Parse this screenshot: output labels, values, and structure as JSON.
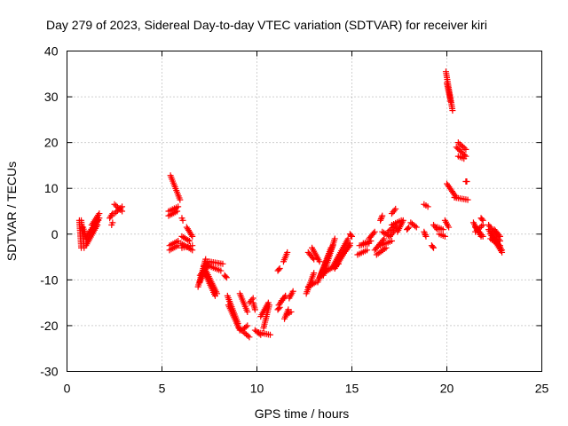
{
  "chart_data": {
    "type": "scatter",
    "title": "Day 279 of 2023, Sidereal Day-to-day VTEC variation (SDTVAR) for receiver kiri",
    "xlabel": "GPS time / hours",
    "ylabel": "SDTVAR / TECUs",
    "xlim": [
      0,
      25
    ],
    "ylim": [
      -30,
      40
    ],
    "xticks": [
      "0",
      "5",
      "10",
      "15",
      "20",
      "25"
    ],
    "yticks": [
      "-30",
      "-20",
      "-10",
      "0",
      "10",
      "20",
      "30",
      "40"
    ],
    "grid": true,
    "marker": "+",
    "color": "#ff0000",
    "segments": [
      {
        "from": [
          0.65,
          3.0
        ],
        "to": [
          0.75,
          -3.0
        ]
      },
      {
        "from": [
          0.75,
          3.0
        ],
        "to": [
          0.9,
          -3.0
        ]
      },
      {
        "from": [
          0.85,
          1.5
        ],
        "to": [
          1.0,
          -1.0
        ]
      },
      {
        "from": [
          1.0,
          -2.5
        ],
        "to": [
          1.6,
          2.0
        ]
      },
      {
        "from": [
          1.05,
          -1.0
        ],
        "to": [
          1.65,
          3.0
        ]
      },
      {
        "from": [
          1.1,
          0.0
        ],
        "to": [
          1.7,
          3.5
        ]
      },
      {
        "from": [
          1.3,
          2.0
        ],
        "to": [
          1.7,
          4.5
        ]
      },
      {
        "from": [
          2.25,
          3.5
        ],
        "to": [
          2.4,
          4.5
        ]
      },
      {
        "from": [
          2.35,
          2.0
        ],
        "to": [
          2.4,
          2.5
        ]
      },
      {
        "from": [
          2.5,
          6.5
        ],
        "to": [
          2.9,
          5.0
        ]
      },
      {
        "from": [
          2.5,
          4.5
        ],
        "to": [
          2.9,
          6.0
        ]
      },
      {
        "from": [
          5.45,
          12.8
        ],
        "to": [
          5.95,
          7.5
        ]
      },
      {
        "from": [
          5.35,
          5.0
        ],
        "to": [
          5.85,
          6.0
        ]
      },
      {
        "from": [
          5.35,
          4.0
        ],
        "to": [
          5.8,
          5.0
        ]
      },
      {
        "from": [
          5.4,
          -2.5
        ],
        "to": [
          5.85,
          -1.5
        ]
      },
      {
        "from": [
          5.4,
          -3.5
        ],
        "to": [
          5.85,
          -2.5
        ]
      },
      {
        "from": [
          6.0,
          -2.0
        ],
        "to": [
          6.6,
          -3.5
        ]
      },
      {
        "from": [
          6.05,
          -3.0
        ],
        "to": [
          6.6,
          -2.5
        ]
      },
      {
        "from": [
          6.05,
          -0.5
        ],
        "to": [
          6.45,
          -1.5
        ]
      },
      {
        "from": [
          6.3,
          1.5
        ],
        "to": [
          6.6,
          -0.5
        ]
      },
      {
        "from": [
          6.05,
          3.5
        ],
        "to": [
          6.1,
          3.0
        ]
      },
      {
        "from": [
          6.9,
          -11.5
        ],
        "to": [
          7.3,
          -5.5
        ]
      },
      {
        "from": [
          7.0,
          -10.5
        ],
        "to": [
          7.4,
          -6.0
        ]
      },
      {
        "from": [
          7.0,
          -9.0
        ],
        "to": [
          7.5,
          -6.5
        ]
      },
      {
        "from": [
          7.2,
          -7.0
        ],
        "to": [
          7.9,
          -13.0
        ]
      },
      {
        "from": [
          7.2,
          -8.0
        ],
        "to": [
          7.8,
          -13.5
        ]
      },
      {
        "from": [
          7.5,
          -6.0
        ],
        "to": [
          8.2,
          -6.5
        ]
      },
      {
        "from": [
          7.5,
          -7.0
        ],
        "to": [
          8.1,
          -8.0
        ]
      },
      {
        "from": [
          8.3,
          -9.0
        ],
        "to": [
          8.4,
          -9.5
        ]
      },
      {
        "from": [
          8.45,
          -13.5
        ],
        "to": [
          9.0,
          -19.5
        ]
      },
      {
        "from": [
          8.5,
          -15.5
        ],
        "to": [
          9.1,
          -21.0
        ]
      },
      {
        "from": [
          9.05,
          -20.5
        ],
        "to": [
          9.6,
          -22.5
        ]
      },
      {
        "from": [
          9.2,
          -21.0
        ],
        "to": [
          9.5,
          -20.0
        ]
      },
      {
        "from": [
          9.1,
          -13.0
        ],
        "to": [
          9.5,
          -17.0
        ]
      },
      {
        "from": [
          9.6,
          -15.0
        ],
        "to": [
          9.8,
          -14.0
        ]
      },
      {
        "from": [
          9.8,
          -15.0
        ],
        "to": [
          9.9,
          -16.5
        ]
      },
      {
        "from": [
          10.1,
          -21.5
        ],
        "to": [
          10.7,
          -22.0
        ]
      },
      {
        "from": [
          9.9,
          -21.0
        ],
        "to": [
          10.2,
          -22.0
        ]
      },
      {
        "from": [
          10.2,
          -18.0
        ],
        "to": [
          10.6,
          -15.0
        ]
      },
      {
        "from": [
          10.35,
          -20.5
        ],
        "to": [
          10.65,
          -15.5
        ]
      },
      {
        "from": [
          11.1,
          -16.5
        ],
        "to": [
          11.2,
          -16.0
        ]
      },
      {
        "from": [
          11.1,
          -8.0
        ],
        "to": [
          11.2,
          -7.5
        ]
      },
      {
        "from": [
          11.15,
          -15.5
        ],
        "to": [
          11.5,
          -13.5
        ]
      },
      {
        "from": [
          11.3,
          -14.5
        ],
        "to": [
          11.5,
          -13.5
        ]
      },
      {
        "from": [
          11.4,
          -6.0
        ],
        "to": [
          11.6,
          -4.0
        ]
      },
      {
        "from": [
          11.45,
          -18.5
        ],
        "to": [
          11.65,
          -16.5
        ]
      },
      {
        "from": [
          11.6,
          -17.5
        ],
        "to": [
          11.8,
          -17.0
        ]
      },
      {
        "from": [
          11.7,
          -14.0
        ],
        "to": [
          11.9,
          -12.5
        ]
      },
      {
        "from": [
          12.6,
          -13.0
        ],
        "to": [
          13.0,
          -8.5
        ]
      },
      {
        "from": [
          12.7,
          -11.5
        ],
        "to": [
          13.1,
          -10.5
        ]
      },
      {
        "from": [
          12.7,
          -4.0
        ],
        "to": [
          13.0,
          -5.5
        ]
      },
      {
        "from": [
          12.9,
          -3.0
        ],
        "to": [
          13.3,
          -6.0
        ]
      },
      {
        "from": [
          13.2,
          -10.5
        ],
        "to": [
          14.0,
          -2.5
        ]
      },
      {
        "from": [
          13.3,
          -9.5
        ],
        "to": [
          13.9,
          -3.0
        ]
      },
      {
        "from": [
          13.5,
          -9.0
        ],
        "to": [
          14.1,
          -1.0
        ]
      },
      {
        "from": [
          13.5,
          -8.5
        ],
        "to": [
          14.3,
          -6.5
        ]
      },
      {
        "from": [
          14.0,
          -7.0
        ],
        "to": [
          14.8,
          -1.0
        ]
      },
      {
        "from": [
          14.1,
          -7.5
        ],
        "to": [
          14.9,
          -2.0
        ]
      },
      {
        "from": [
          14.2,
          -6.0
        ],
        "to": [
          14.9,
          -2.5
        ]
      },
      {
        "from": [
          14.9,
          0.0
        ],
        "to": [
          15.0,
          -0.5
        ]
      },
      {
        "from": [
          15.3,
          -4.5
        ],
        "to": [
          15.8,
          -3.5
        ]
      },
      {
        "from": [
          15.4,
          -2.5
        ],
        "to": [
          15.9,
          -2.0
        ]
      },
      {
        "from": [
          15.6,
          -2.0
        ],
        "to": [
          16.0,
          -1.5
        ]
      },
      {
        "from": [
          15.9,
          -1.0
        ],
        "to": [
          16.2,
          0.5
        ]
      },
      {
        "from": [
          16.2,
          -3.5
        ],
        "to": [
          16.7,
          -1.0
        ]
      },
      {
        "from": [
          16.3,
          -4.5
        ],
        "to": [
          16.8,
          -3.0
        ]
      },
      {
        "from": [
          16.5,
          -2.5
        ],
        "to": [
          17.1,
          -1.5
        ]
      },
      {
        "from": [
          16.6,
          0.5
        ],
        "to": [
          17.0,
          -0.5
        ]
      },
      {
        "from": [
          16.9,
          0.5
        ],
        "to": [
          17.3,
          2.0
        ]
      },
      {
        "from": [
          17.0,
          -0.5
        ],
        "to": [
          17.4,
          1.5
        ]
      },
      {
        "from": [
          17.1,
          2.0
        ],
        "to": [
          17.6,
          3.0
        ]
      },
      {
        "from": [
          17.4,
          0.5
        ],
        "to": [
          17.7,
          3.0
        ]
      },
      {
        "from": [
          16.5,
          3.0
        ],
        "to": [
          16.6,
          4.0
        ]
      },
      {
        "from": [
          17.1,
          4.5
        ],
        "to": [
          17.3,
          5.5
        ]
      },
      {
        "from": [
          17.9,
          1.0
        ],
        "to": [
          18.0,
          1.5
        ]
      },
      {
        "from": [
          18.1,
          2.5
        ],
        "to": [
          18.4,
          1.5
        ]
      },
      {
        "from": [
          18.8,
          6.5
        ],
        "to": [
          19.0,
          6.0
        ]
      },
      {
        "from": [
          18.8,
          0.5
        ],
        "to": [
          18.9,
          -0.5
        ]
      },
      {
        "from": [
          19.2,
          -2.5
        ],
        "to": [
          19.3,
          -3.0
        ]
      },
      {
        "from": [
          19.3,
          2.0
        ],
        "to": [
          19.5,
          1.0
        ]
      },
      {
        "from": [
          19.5,
          1.5
        ],
        "to": [
          19.8,
          1.0
        ]
      },
      {
        "from": [
          19.6,
          0.0
        ],
        "to": [
          19.9,
          -0.5
        ]
      },
      {
        "from": [
          19.95,
          35.5
        ],
        "to": [
          20.3,
          27.0
        ]
      },
      {
        "from": [
          20.0,
          33.0
        ],
        "to": [
          20.2,
          29.0
        ]
      },
      {
        "from": [
          20.0,
          11.0
        ],
        "to": [
          20.5,
          8.0
        ]
      },
      {
        "from": [
          20.4,
          8.0
        ],
        "to": [
          21.1,
          7.5
        ]
      },
      {
        "from": [
          19.9,
          3.0
        ],
        "to": [
          20.1,
          1.5
        ]
      },
      {
        "from": [
          20.5,
          19.0
        ],
        "to": [
          21.0,
          17.0
        ]
      },
      {
        "from": [
          20.6,
          20.0
        ],
        "to": [
          21.0,
          18.5
        ]
      },
      {
        "from": [
          20.6,
          17.0
        ],
        "to": [
          20.9,
          16.5
        ]
      },
      {
        "from": [
          21.0,
          11.5
        ],
        "to": [
          21.05,
          11.5
        ]
      },
      {
        "from": [
          21.4,
          2.5
        ],
        "to": [
          21.8,
          -0.5
        ]
      },
      {
        "from": [
          21.5,
          1.5
        ],
        "to": [
          21.9,
          -0.5
        ]
      },
      {
        "from": [
          21.5,
          0.5
        ],
        "to": [
          21.9,
          2.0
        ]
      },
      {
        "from": [
          21.8,
          3.5
        ],
        "to": [
          21.9,
          3.0
        ]
      },
      {
        "from": [
          22.2,
          1.0
        ],
        "to": [
          22.9,
          -3.5
        ]
      },
      {
        "from": [
          22.2,
          2.0
        ],
        "to": [
          22.8,
          -1.5
        ]
      },
      {
        "from": [
          22.3,
          0.0
        ],
        "to": [
          22.9,
          -4.0
        ]
      },
      {
        "from": [
          22.3,
          -1.0
        ],
        "to": [
          22.8,
          -2.5
        ]
      },
      {
        "from": [
          22.5,
          1.0
        ],
        "to": [
          22.8,
          -0.5
        ]
      }
    ]
  }
}
